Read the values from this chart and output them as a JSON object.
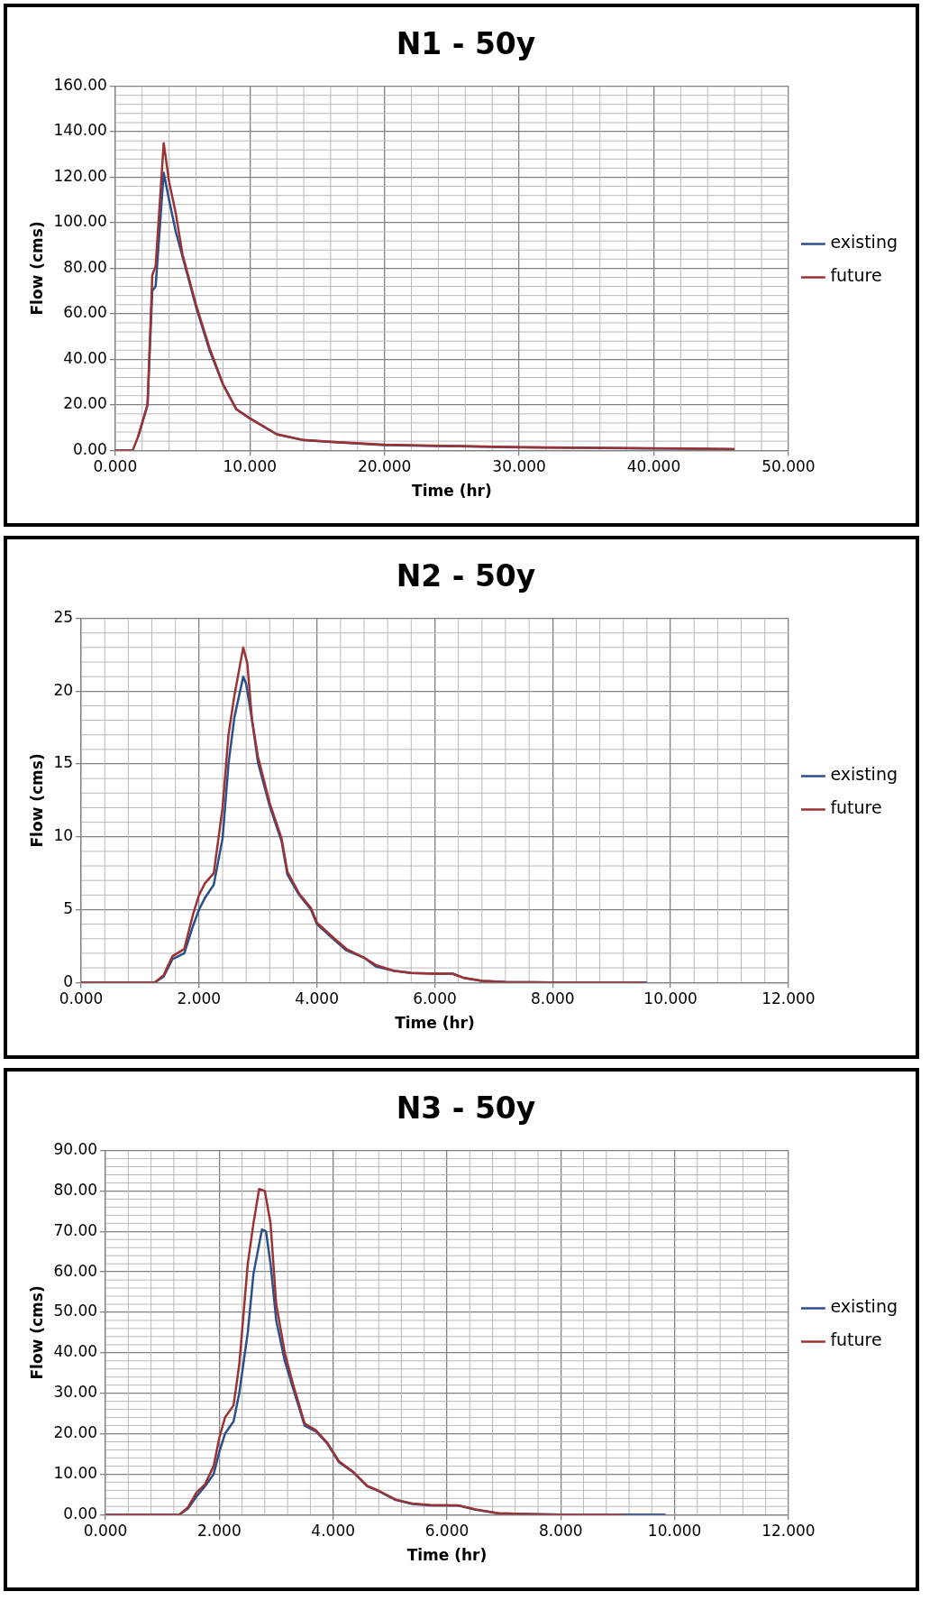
{
  "chart_data": [
    {
      "type": "line",
      "title": "N1 - 50y",
      "xlabel": "Time (hr)",
      "ylabel": "Flow (cms)",
      "xlim": [
        0,
        50
      ],
      "xticks": [
        {
          "value": 0,
          "label": "0.000"
        },
        {
          "value": 10,
          "label": "10.000"
        },
        {
          "value": 20,
          "label": "20.000"
        },
        {
          "value": 30,
          "label": "30.000"
        },
        {
          "value": 40,
          "label": "40.000"
        },
        {
          "value": 50,
          "label": "50.000"
        }
      ],
      "ylim": [
        0,
        160
      ],
      "yticks": [
        {
          "value": 0,
          "label": "0.00"
        },
        {
          "value": 20,
          "label": "20.00"
        },
        {
          "value": 40,
          "label": "40.00"
        },
        {
          "value": 60,
          "label": "60.00"
        },
        {
          "value": 80,
          "label": "80.00"
        },
        {
          "value": 100,
          "label": "100.00"
        },
        {
          "value": 120,
          "label": "120.00"
        },
        {
          "value": 140,
          "label": "140.00"
        },
        {
          "value": 160,
          "label": "160.00"
        }
      ],
      "grid": true,
      "legend": "right",
      "marker": "none",
      "line_style": "solid",
      "series": [
        {
          "name": "existing",
          "color": "#2b4f8a",
          "x": [
            1.7,
            2.4,
            2.75,
            3.0,
            3.6,
            4.0,
            4.5,
            5.0,
            6.0,
            7.0,
            8.0,
            9.0,
            10,
            12,
            14,
            16,
            20,
            25,
            30,
            40,
            46
          ],
          "values": [
            6,
            20,
            70,
            72,
            122,
            110,
            96,
            85,
            63,
            44,
            29,
            18,
            14,
            7,
            4.4,
            3.6,
            2.3,
            1.8,
            1.3,
            0.8,
            0.5
          ]
        },
        {
          "name": "future",
          "color": "#9b3335",
          "x": [
            0,
            1.3,
            1.7,
            2.4,
            2.75,
            3.0,
            3.6,
            4.0,
            4.5,
            5.0,
            6.0,
            7.0,
            8.0,
            9.0,
            10,
            12,
            14,
            16,
            20,
            25,
            30,
            40,
            46
          ],
          "values": [
            0,
            0,
            6,
            20,
            77,
            81,
            135,
            118,
            104,
            86,
            64,
            45,
            29,
            18,
            14,
            7,
            4.5,
            3.7,
            2.5,
            1.9,
            1.4,
            0.9,
            0.5
          ]
        }
      ]
    },
    {
      "type": "line",
      "title": "N2 - 50y",
      "xlabel": "Time (hr)",
      "ylabel": "Flow (cms)",
      "xlim": [
        0,
        12
      ],
      "xticks": [
        {
          "value": 0,
          "label": "0.000"
        },
        {
          "value": 2,
          "label": "2.000"
        },
        {
          "value": 4,
          "label": "4.000"
        },
        {
          "value": 6,
          "label": "6.000"
        },
        {
          "value": 8,
          "label": "8.000"
        },
        {
          "value": 10,
          "label": "10.000"
        },
        {
          "value": 12,
          "label": "12.000"
        }
      ],
      "ylim": [
        0,
        25
      ],
      "yticks": [
        0,
        5,
        10,
        15,
        20,
        25
      ],
      "grid": true,
      "legend": "right",
      "marker": "none",
      "line_style": "solid",
      "series": [
        {
          "name": "existing",
          "color": "#2b4f8a",
          "x": [
            0,
            1.25,
            1.4,
            1.55,
            1.75,
            1.9,
            2.0,
            2.1,
            2.25,
            2.4,
            2.5,
            2.6,
            2.75,
            2.8,
            2.9,
            3.0,
            3.2,
            3.4,
            3.5,
            3.7,
            3.9,
            4.0,
            4.3,
            4.5,
            4.8,
            5.0,
            5.3,
            5.6,
            6.0,
            6.3,
            6.5,
            6.8,
            7.2,
            8.0,
            9.6
          ],
          "values": [
            0,
            0,
            0.4,
            1.6,
            2.0,
            3.9,
            5.0,
            5.8,
            6.7,
            9.9,
            15,
            18.2,
            21,
            20.5,
            18,
            15.1,
            12.1,
            9.7,
            7.4,
            6,
            5,
            4,
            2.9,
            2.2,
            1.7,
            1.1,
            0.8,
            0.65,
            0.6,
            0.6,
            0.3,
            0.1,
            0.03,
            0,
            0
          ]
        },
        {
          "name": "future",
          "color": "#9b3335",
          "x": [
            0,
            1.25,
            1.4,
            1.55,
            1.75,
            1.9,
            2.0,
            2.1,
            2.25,
            2.4,
            2.5,
            2.6,
            2.75,
            2.82,
            2.9,
            3.0,
            3.2,
            3.4,
            3.5,
            3.7,
            3.9,
            4.0,
            4.3,
            4.5,
            4.8,
            5.0,
            5.3,
            5.6,
            6.0,
            6.3,
            6.5,
            6.8,
            7.2,
            8.0,
            9.55
          ],
          "values": [
            0,
            0,
            0.5,
            1.8,
            2.3,
            4.7,
            6.0,
            6.8,
            7.5,
            12,
            17,
            19.7,
            23,
            21.9,
            18,
            15.5,
            12.3,
            9.9,
            7.6,
            6.1,
            5.1,
            4.1,
            3,
            2.3,
            1.7,
            1.2,
            0.8,
            0.65,
            0.6,
            0.6,
            0.3,
            0.1,
            0.03,
            0,
            0
          ]
        }
      ]
    },
    {
      "type": "line",
      "title": "N3 - 50y",
      "xlabel": "Time (hr)",
      "ylabel": "Flow (cms)",
      "xlim": [
        0,
        12
      ],
      "xticks": [
        {
          "value": 0,
          "label": "0.000"
        },
        {
          "value": 2,
          "label": "2.000"
        },
        {
          "value": 4,
          "label": "4.000"
        },
        {
          "value": 6,
          "label": "6.000"
        },
        {
          "value": 8,
          "label": "8.000"
        },
        {
          "value": 10,
          "label": "10.000"
        },
        {
          "value": 12,
          "label": "12.000"
        }
      ],
      "ylim": [
        0,
        90
      ],
      "yticks": [
        {
          "value": 0,
          "label": "0.00"
        },
        {
          "value": 10,
          "label": "10.00"
        },
        {
          "value": 20,
          "label": "20.00"
        },
        {
          "value": 30,
          "label": "30.00"
        },
        {
          "value": 40,
          "label": "40.00"
        },
        {
          "value": 50,
          "label": "50.00"
        },
        {
          "value": 60,
          "label": "60.00"
        },
        {
          "value": 70,
          "label": "70.00"
        },
        {
          "value": 80,
          "label": "80.00"
        },
        {
          "value": 90,
          "label": "90.00"
        }
      ],
      "grid": true,
      "legend": "right",
      "marker": "none",
      "line_style": "solid",
      "series": [
        {
          "name": "existing",
          "color": "#2b4f8a",
          "x": [
            0,
            1.3,
            1.45,
            1.6,
            1.75,
            1.9,
            2.0,
            2.1,
            2.25,
            2.35,
            2.5,
            2.6,
            2.75,
            2.82,
            2.9,
            3.0,
            3.15,
            3.3,
            3.5,
            3.7,
            3.9,
            4.1,
            4.35,
            4.6,
            4.8,
            5.1,
            5.4,
            5.7,
            6.2,
            6.5,
            6.9,
            7.5,
            8.0,
            9.84
          ],
          "values": [
            0,
            0,
            1.5,
            4.5,
            7,
            10,
            15.5,
            20,
            23,
            30,
            45,
            59.5,
            70.5,
            70,
            62,
            48,
            38,
            31,
            22,
            20.5,
            17.5,
            13,
            10.5,
            7,
            5.8,
            3.6,
            2.6,
            2.3,
            2.2,
            1.2,
            0.3,
            0.1,
            0,
            0
          ]
        },
        {
          "name": "future",
          "color": "#9b3335",
          "x": [
            0,
            1.3,
            1.45,
            1.6,
            1.75,
            1.9,
            2.0,
            2.1,
            2.25,
            2.35,
            2.5,
            2.6,
            2.7,
            2.8,
            2.9,
            3.0,
            3.15,
            3.3,
            3.5,
            3.7,
            3.9,
            4.1,
            4.35,
            4.6,
            4.8,
            5.1,
            5.4,
            5.7,
            6.2,
            6.5,
            6.9,
            7.5,
            8.0,
            9.1
          ],
          "values": [
            0,
            0,
            1.8,
            5.5,
            7.5,
            12,
            19,
            24,
            27,
            37,
            62,
            72,
            80.5,
            80,
            72,
            52,
            40,
            32,
            22.5,
            20.8,
            17.7,
            13.2,
            10.6,
            7.1,
            5.9,
            3.7,
            2.7,
            2.4,
            2.3,
            1.3,
            0.3,
            0.1,
            0,
            0
          ]
        }
      ]
    }
  ]
}
